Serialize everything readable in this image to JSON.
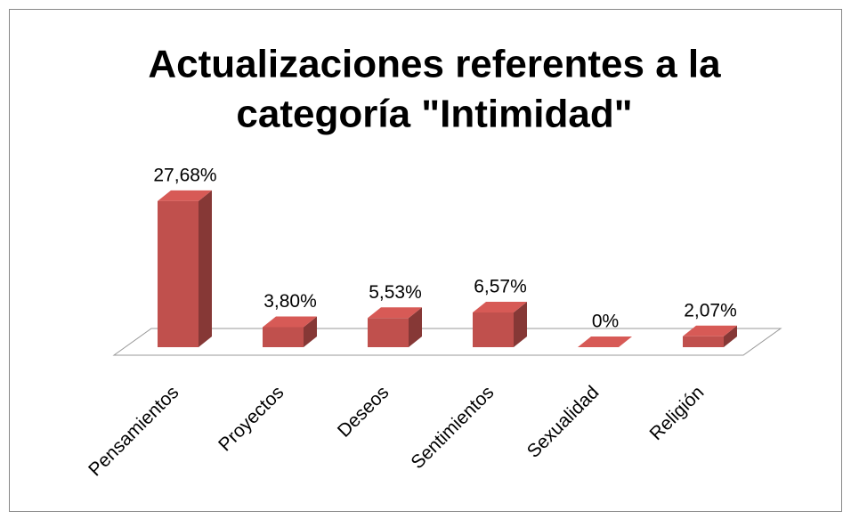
{
  "chart_data": {
    "type": "bar3d",
    "title": [
      "Actualizaciones referentes a la",
      "categoría \"Intimidad\""
    ],
    "categories": [
      "Pensamientos",
      "Proyectos",
      "Deseos",
      "Sentimientos",
      "Sexualidad",
      "Religión"
    ],
    "values": [
      27.68,
      3.8,
      5.53,
      6.57,
      0,
      2.07
    ],
    "value_labels": [
      "27,68%",
      "3,80%",
      "5,53%",
      "6,57%",
      "0%",
      "2,07%"
    ],
    "color": "#c0504d"
  }
}
